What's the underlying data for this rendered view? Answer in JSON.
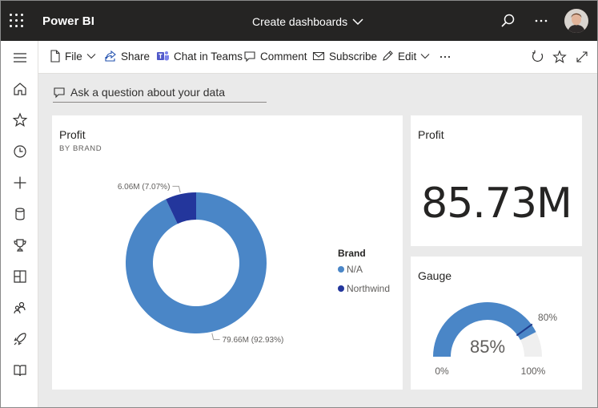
{
  "header": {
    "app_name": "Power BI",
    "dashboard_title": "Create dashboards"
  },
  "actions": {
    "file": "File",
    "share": "Share",
    "chat_in_teams": "Chat in Teams",
    "comment": "Comment",
    "subscribe": "Subscribe",
    "edit": "Edit"
  },
  "qa": {
    "placeholder": "Ask a question about your data"
  },
  "nav_icons": [
    "hamburger-icon",
    "home-icon",
    "star-icon",
    "clock-icon",
    "plus-icon",
    "database-icon",
    "trophy-icon",
    "apps-icon",
    "people-icon",
    "rocket-icon",
    "book-icon"
  ],
  "tiles": {
    "profit_brand": {
      "title": "Profit",
      "subtitle": "BY BRAND",
      "legend_title": "Brand"
    },
    "profit_card": {
      "title": "Profit",
      "value": "85.73M"
    },
    "gauge": {
      "title": "Gauge",
      "value_label": "85%",
      "min_label": "0%",
      "max_label": "100%",
      "target_label": "80%",
      "value": 0.85,
      "target": 0.8,
      "fill_color": "#4a86c7",
      "track_color": "#efefef",
      "target_color": "#1f3b8c"
    }
  },
  "chart_data": {
    "type": "pie",
    "variant": "donut",
    "title": "Profit",
    "subtitle": "BY BRAND",
    "legend_title": "Brand",
    "legend_placement": "right",
    "slices": [
      {
        "name": "N/A",
        "value": 79.66,
        "label": "79.66M (92.93%)",
        "color": "#4a86c7"
      },
      {
        "name": "Northwind",
        "value": 6.06,
        "label": "6.06M (7.07%)",
        "color": "#23369c"
      }
    ]
  }
}
